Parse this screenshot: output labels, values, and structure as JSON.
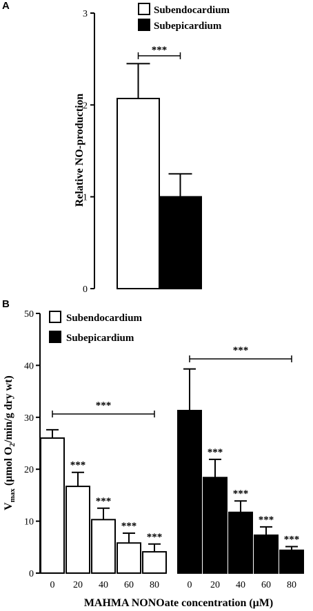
{
  "chart_data": [
    {
      "panel": "A",
      "type": "bar",
      "categories": [
        "Subendocardium",
        "Subepicardium"
      ],
      "values": [
        2.07,
        1.0
      ],
      "errors": [
        0.38,
        0.25
      ],
      "colors": [
        "#ffffff",
        "#000000"
      ],
      "ylabel": "Relative NO-production",
      "ylim": [
        0,
        3
      ],
      "yticks": [
        "0",
        "1",
        "2",
        "3"
      ],
      "legend": [
        {
          "label": "Subendocardium",
          "color": "#ffffff"
        },
        {
          "label": "Subepicardium",
          "color": "#000000"
        }
      ],
      "legend_position": "top-right",
      "significance": "***"
    },
    {
      "panel": "B",
      "type": "bar",
      "categories": [
        "0",
        "20",
        "40",
        "60",
        "80"
      ],
      "series": [
        {
          "name": "Subendocardium",
          "color": "#ffffff",
          "values": [
            26.0,
            16.7,
            10.3,
            5.8,
            4.1
          ],
          "errors": [
            1.6,
            2.7,
            2.2,
            1.9,
            1.5
          ]
        },
        {
          "name": "Subepicardium",
          "color": "#000000",
          "values": [
            31.3,
            18.4,
            11.7,
            7.3,
            4.4
          ],
          "errors": [
            8.0,
            3.5,
            2.2,
            1.6,
            0.7
          ]
        }
      ],
      "ylabel_main": "V",
      "ylabel_sub": "max",
      "ylabel_rest": " (μmol O",
      "ylabel_sub2": "2",
      "ylabel_end": "/min/g dry wt)",
      "xlabel": "MAHMA NONOate concentration (μM)",
      "ylim": [
        0,
        50
      ],
      "yticks": [
        "0",
        "10",
        "20",
        "30",
        "40",
        "50"
      ],
      "legend_position": "top-left",
      "significance": "***"
    }
  ]
}
